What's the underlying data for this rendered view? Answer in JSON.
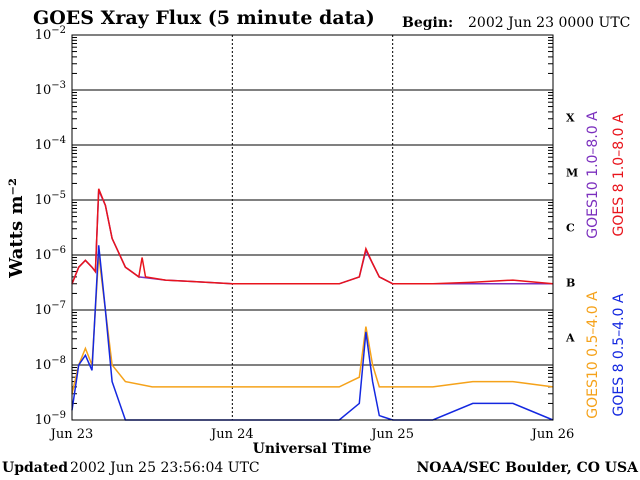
{
  "header": {
    "title": "GOES Xray Flux (5 minute data)",
    "begin_label": "Begin:",
    "begin_value": "2002 Jun 23 0000 UTC"
  },
  "footer": {
    "updated_label": "Updated",
    "updated_value": "2002 Jun 25 23:56:04 UTC",
    "credit": "NOAA/SEC Boulder, CO USA"
  },
  "colors": {
    "goes10_long": "#7b2fbe",
    "goes8_long": "#e8141c",
    "goes10_short": "#f5a21a",
    "goes8_short": "#1428e0",
    "frame": "#000000"
  },
  "chart_data": {
    "type": "line",
    "title": "GOES Xray Flux (5 minute data)",
    "xlabel": "Universal Time",
    "ylabel": "Watts m⁻²",
    "yscale": "log",
    "ylim": [
      1e-09,
      0.01
    ],
    "xlim": [
      "2002-06-23 00:00",
      "2002-06-26 00:00"
    ],
    "x_ticks": [
      "Jun 23",
      "Jun 24",
      "Jun 25",
      "Jun 26"
    ],
    "y_ticks": [
      {
        "base": "10",
        "exp": "−2",
        "value": 0.01
      },
      {
        "base": "10",
        "exp": "−3",
        "value": 0.001
      },
      {
        "base": "10",
        "exp": "−4",
        "value": 0.0001
      },
      {
        "base": "10",
        "exp": "−5",
        "value": 1e-05
      },
      {
        "base": "10",
        "exp": "−6",
        "value": 1e-06
      },
      {
        "base": "10",
        "exp": "−7",
        "value": 1e-07
      },
      {
        "base": "10",
        "exp": "−8",
        "value": 1e-08
      },
      {
        "base": "10",
        "exp": "−9",
        "value": 1e-09
      }
    ],
    "flare_classes": [
      {
        "label": "X",
        "value": 0.0001
      },
      {
        "label": "M",
        "value": 1e-05
      },
      {
        "label": "C",
        "value": 1e-06
      },
      {
        "label": "B",
        "value": 1e-07
      },
      {
        "label": "A",
        "value": 1e-08
      }
    ],
    "grid": true,
    "legend_placement": "right",
    "series": [
      {
        "name": "GOES10 1.0–8.0 A",
        "color": "#7b2fbe",
        "x": [
          "2002-06-23 00:00",
          "2002-06-23 01:00",
          "2002-06-23 02:00",
          "2002-06-23 03:00",
          "2002-06-23 03:30",
          "2002-06-23 04:00",
          "2002-06-23 05:00",
          "2002-06-23 06:00",
          "2002-06-23 08:00",
          "2002-06-23 10:00",
          "2002-06-23 14:00",
          "2002-06-23 18:00",
          "2002-06-24 00:00",
          "2002-06-24 06:00",
          "2002-06-24 12:00",
          "2002-06-24 16:00",
          "2002-06-24 19:00",
          "2002-06-24 20:00",
          "2002-06-24 21:00",
          "2002-06-24 22:00",
          "2002-06-25 00:00",
          "2002-06-25 06:00",
          "2002-06-25 12:00",
          "2002-06-25 18:00",
          "2002-06-26 00:00"
        ],
        "values": [
          3e-07,
          6e-07,
          8e-07,
          6e-07,
          5e-07,
          1.5e-05,
          8e-06,
          2e-06,
          6e-07,
          4e-07,
          3.5e-07,
          3.3e-07,
          3e-07,
          3e-07,
          3e-07,
          3e-07,
          4e-07,
          1.2e-06,
          7e-07,
          4e-07,
          3e-07,
          3e-07,
          3e-07,
          3e-07,
          3e-07
        ]
      },
      {
        "name": "GOES 8 1.0–8.0 A",
        "color": "#e8141c",
        "x": [
          "2002-06-23 00:00",
          "2002-06-23 01:00",
          "2002-06-23 02:00",
          "2002-06-23 03:00",
          "2002-06-23 03:30",
          "2002-06-23 04:00",
          "2002-06-23 05:00",
          "2002-06-23 06:00",
          "2002-06-23 08:00",
          "2002-06-23 10:00",
          "2002-06-23 10:30",
          "2002-06-23 11:00",
          "2002-06-23 14:00",
          "2002-06-23 18:00",
          "2002-06-24 00:00",
          "2002-06-24 06:00",
          "2002-06-24 12:00",
          "2002-06-24 16:00",
          "2002-06-24 19:00",
          "2002-06-24 20:00",
          "2002-06-24 21:00",
          "2002-06-24 22:00",
          "2002-06-25 00:00",
          "2002-06-25 06:00",
          "2002-06-25 12:00",
          "2002-06-25 18:00",
          "2002-06-26 00:00"
        ],
        "values": [
          3e-07,
          6e-07,
          8e-07,
          6e-07,
          5e-07,
          1.6e-05,
          8e-06,
          2e-06,
          6e-07,
          4e-07,
          9e-07,
          4e-07,
          3.5e-07,
          3.3e-07,
          3e-07,
          3e-07,
          3e-07,
          3e-07,
          4e-07,
          1.3e-06,
          7e-07,
          4e-07,
          3e-07,
          3e-07,
          3.2e-07,
          3.5e-07,
          3e-07
        ]
      },
      {
        "name": "GOES10 0.5–4.0 A",
        "color": "#f5a21a",
        "x": [
          "2002-06-23 00:00",
          "2002-06-23 01:00",
          "2002-06-23 02:00",
          "2002-06-23 03:00",
          "2002-06-23 04:00",
          "2002-06-23 05:00",
          "2002-06-23 06:00",
          "2002-06-23 08:00",
          "2002-06-23 12:00",
          "2002-06-23 16:00",
          "2002-06-23 20:00",
          "2002-06-24 00:00",
          "2002-06-24 06:00",
          "2002-06-24 12:00",
          "2002-06-24 16:00",
          "2002-06-24 19:00",
          "2002-06-24 20:00",
          "2002-06-24 21:00",
          "2002-06-24 22:00",
          "2002-06-25 00:00",
          "2002-06-25 06:00",
          "2002-06-25 12:00",
          "2002-06-25 18:00",
          "2002-06-26 00:00"
        ],
        "values": [
          3e-09,
          1e-08,
          2e-08,
          1e-08,
          1e-06,
          1e-07,
          1e-08,
          5e-09,
          4e-09,
          4e-09,
          4e-09,
          4e-09,
          4e-09,
          4e-09,
          4e-09,
          6e-09,
          5e-08,
          1e-08,
          4e-09,
          4e-09,
          4e-09,
          5e-09,
          5e-09,
          4e-09
        ]
      },
      {
        "name": "GOES 8 0.5–4.0 A",
        "color": "#1428e0",
        "x": [
          "2002-06-23 00:00",
          "2002-06-23 01:00",
          "2002-06-23 02:00",
          "2002-06-23 03:00",
          "2002-06-23 04:00",
          "2002-06-23 05:00",
          "2002-06-23 06:00",
          "2002-06-23 08:00",
          "2002-06-23 10:00",
          "2002-06-23 12:00",
          "2002-06-23 16:00",
          "2002-06-23 20:00",
          "2002-06-24 00:00",
          "2002-06-24 06:00",
          "2002-06-24 12:00",
          "2002-06-24 16:00",
          "2002-06-24 19:00",
          "2002-06-24 20:00",
          "2002-06-24 21:00",
          "2002-06-24 22:00",
          "2002-06-25 00:00",
          "2002-06-25 06:00",
          "2002-06-25 12:00",
          "2002-06-25 18:00",
          "2002-06-26 00:00"
        ],
        "values": [
          1.5e-09,
          1e-08,
          1.5e-08,
          8e-09,
          1.5e-06,
          1e-07,
          5e-09,
          1e-09,
          1e-09,
          1e-09,
          1e-09,
          1e-09,
          1e-09,
          1e-09,
          1e-09,
          1e-09,
          2e-09,
          4e-08,
          5e-09,
          1.2e-09,
          1e-09,
          1e-09,
          2e-09,
          2e-09,
          1e-09
        ]
      }
    ]
  }
}
